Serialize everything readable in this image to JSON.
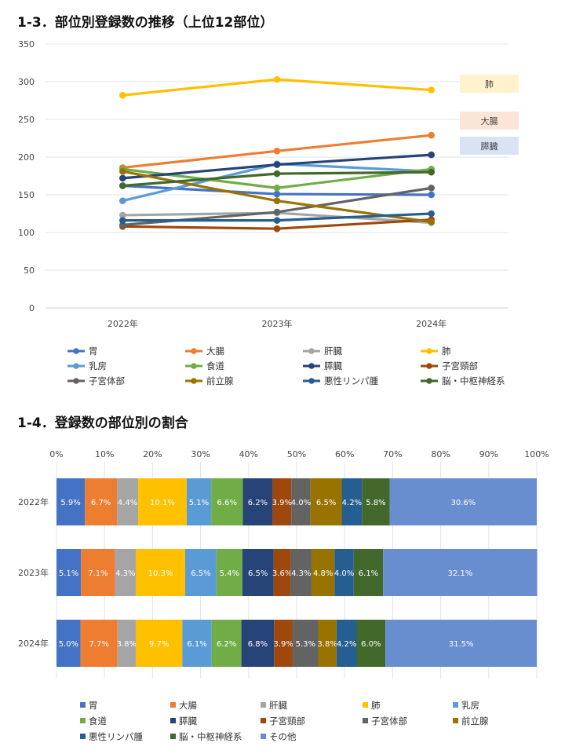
{
  "section1": {
    "title": "1-3．部位別登録数の推移（上位12部位）"
  },
  "section2": {
    "title": "1-4．登録数の部位別の割合"
  },
  "chart_data": [
    {
      "type": "line",
      "title": "1-3．部位別登録数の推移（上位12部位）",
      "x": [
        "2022年",
        "2023年",
        "2024年"
      ],
      "ylim": [
        0,
        350
      ],
      "yticks": [
        0,
        50,
        100,
        150,
        200,
        250,
        300,
        350
      ],
      "grid": true,
      "legend_position": "bottom",
      "series": [
        {
          "name": "胃",
          "color": "#4472C4",
          "values": [
            162,
            151,
            150
          ]
        },
        {
          "name": "大腸",
          "color": "#ED7D31",
          "values": [
            186,
            208,
            229
          ]
        },
        {
          "name": "肝臓",
          "color": "#A5A5A5",
          "values": [
            123,
            126,
            113
          ]
        },
        {
          "name": "肺",
          "color": "#FFC000",
          "values": [
            282,
            303,
            289
          ]
        },
        {
          "name": "乳房",
          "color": "#5B9BD5",
          "values": [
            142,
            191,
            181
          ]
        },
        {
          "name": "食道",
          "color": "#70AD47",
          "values": [
            184,
            159,
            184
          ]
        },
        {
          "name": "膵臓",
          "color": "#264478",
          "values": [
            172,
            190,
            203
          ]
        },
        {
          "name": "子宮頸部",
          "color": "#9E480E",
          "values": [
            108,
            105,
            117
          ]
        },
        {
          "name": "子宮体部",
          "color": "#636363",
          "values": [
            110,
            127,
            159
          ]
        },
        {
          "name": "前立腺",
          "color": "#997300",
          "values": [
            181,
            142,
            114
          ]
        },
        {
          "name": "悪性リンパ腫",
          "color": "#255E91",
          "values": [
            116,
            116,
            125
          ]
        },
        {
          "name": "脳・中枢神経系",
          "color": "#43682B",
          "values": [
            162,
            178,
            180
          ]
        }
      ],
      "annotations": [
        {
          "text": "肺",
          "series": "肺",
          "fill": "#FFF2CC"
        },
        {
          "text": "大腸",
          "series": "大腸",
          "fill": "#FBE5D6"
        },
        {
          "text": "膵臓",
          "series": "膵臓",
          "fill": "#DAE3F3"
        }
      ]
    },
    {
      "type": "bar",
      "orientation": "horizontal",
      "stacked": true,
      "title": "1-4．登録数の部位別の割合",
      "categories": [
        "2022年",
        "2023年",
        "2024年"
      ],
      "xlim": [
        0,
        100
      ],
      "xticks": [
        "0%",
        "10%",
        "20%",
        "30%",
        "40%",
        "50%",
        "60%",
        "70%",
        "80%",
        "90%",
        "100%"
      ],
      "grid": true,
      "legend_position": "bottom",
      "series": [
        {
          "name": "胃",
          "color": "#4472C4",
          "values": [
            5.9,
            5.1,
            5.0
          ]
        },
        {
          "name": "大腸",
          "color": "#ED7D31",
          "values": [
            6.7,
            7.1,
            7.7
          ]
        },
        {
          "name": "肝臓",
          "color": "#A5A5A5",
          "values": [
            4.4,
            4.3,
            3.8
          ]
        },
        {
          "name": "肺",
          "color": "#FFC000",
          "values": [
            10.1,
            10.3,
            9.7
          ]
        },
        {
          "name": "乳房",
          "color": "#5B9BD5",
          "values": [
            5.1,
            6.5,
            6.1
          ]
        },
        {
          "name": "食道",
          "color": "#70AD47",
          "values": [
            6.6,
            5.4,
            6.2
          ]
        },
        {
          "name": "膵臓",
          "color": "#264478",
          "values": [
            6.2,
            6.5,
            6.8
          ]
        },
        {
          "name": "子宮頸部",
          "color": "#9E480E",
          "values": [
            3.9,
            3.6,
            3.9
          ]
        },
        {
          "name": "子宮体部",
          "color": "#636363",
          "values": [
            4.0,
            4.3,
            5.3
          ]
        },
        {
          "name": "前立腺",
          "color": "#997300",
          "values": [
            6.5,
            4.8,
            3.8
          ]
        },
        {
          "name": "悪性リンパ腫",
          "color": "#255E91",
          "values": [
            4.2,
            4.0,
            4.2
          ]
        },
        {
          "name": "脳・中枢神経系",
          "color": "#43682B",
          "values": [
            5.8,
            6.1,
            6.0
          ]
        },
        {
          "name": "その他",
          "color": "#698ED0",
          "values": [
            30.6,
            32.1,
            31.5
          ]
        }
      ]
    }
  ]
}
